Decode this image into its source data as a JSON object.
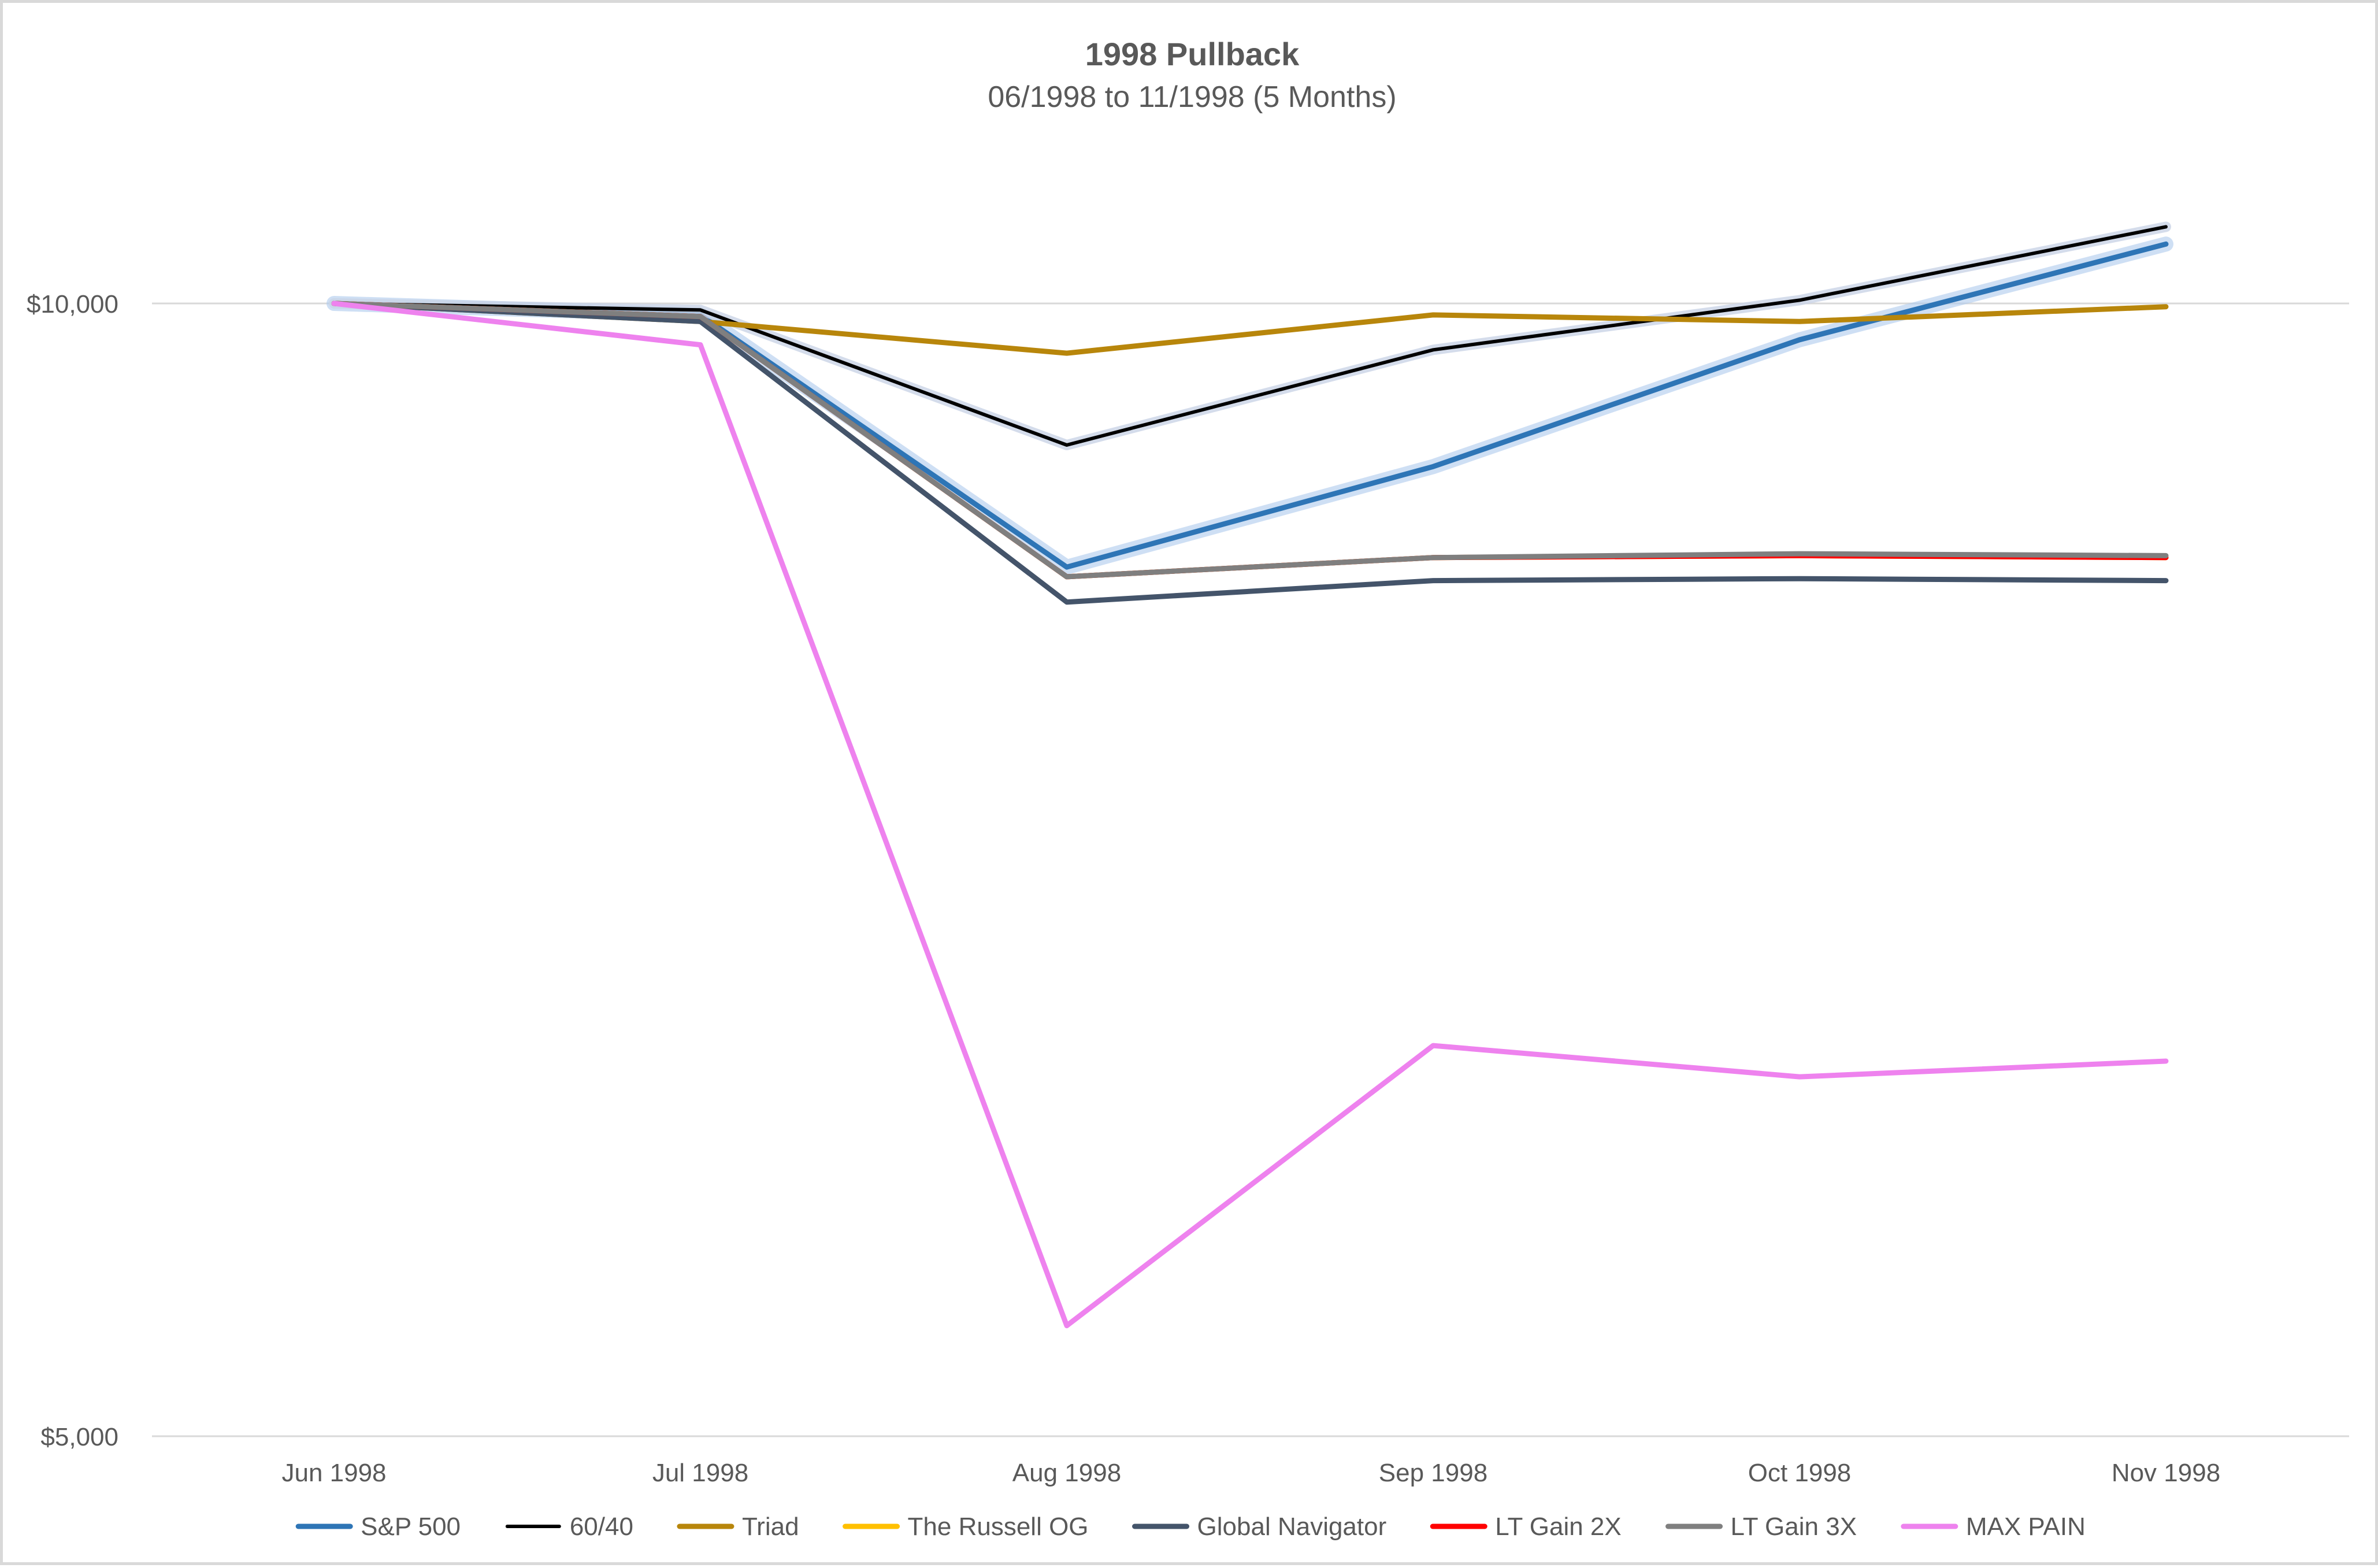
{
  "chart_data": {
    "type": "line",
    "title": "1998 Pullback",
    "subtitle": "06/1998 to 11/1998 (5 Months)",
    "xlabel": "",
    "ylabel": "",
    "y_scale": "log",
    "ylim": [
      5000,
      12000
    ],
    "y_ticks": [
      5000,
      10000
    ],
    "y_tick_labels": [
      "$5,000",
      "$10,000"
    ],
    "categories": [
      "Jun 1998",
      "Jul 1998",
      "Aug 1998",
      "Sep 1998",
      "Oct 1998",
      "Nov 1998"
    ],
    "grid": "horizontal",
    "legend_position": "bottom",
    "series": [
      {
        "name": "S&P 500",
        "color": "#2e75b6",
        "glow": true,
        "values": [
          10000,
          9930,
          8510,
          9050,
          9780,
          10370
        ]
      },
      {
        "name": "60/40",
        "color": "#000000",
        "values": [
          10000,
          9960,
          9170,
          9720,
          10020,
          10480
        ]
      },
      {
        "name": "Triad",
        "color": "#b8860b",
        "values": [
          10000,
          9890,
          9700,
          9930,
          9890,
          9980
        ]
      },
      {
        "name": "The Russell OG",
        "color": "#ffc000",
        "values": [
          10000,
          9920,
          8460,
          8560,
          8570,
          8560
        ]
      },
      {
        "name": "Global Navigator",
        "color": "#44546a",
        "values": [
          10000,
          9890,
          8330,
          8440,
          8450,
          8440
        ]
      },
      {
        "name": "LT Gain 2X",
        "color": "#ff0000",
        "values": [
          10000,
          9920,
          8460,
          8560,
          8570,
          8560
        ]
      },
      {
        "name": "LT Gain 3X",
        "color": "#7f7f7f",
        "values": [
          10000,
          9920,
          8460,
          8560,
          8580,
          8570
        ]
      },
      {
        "name": "MAX PAIN",
        "color": "#ee82ee",
        "values": [
          10000,
          9750,
          5350,
          6350,
          6230,
          6290
        ]
      }
    ]
  }
}
